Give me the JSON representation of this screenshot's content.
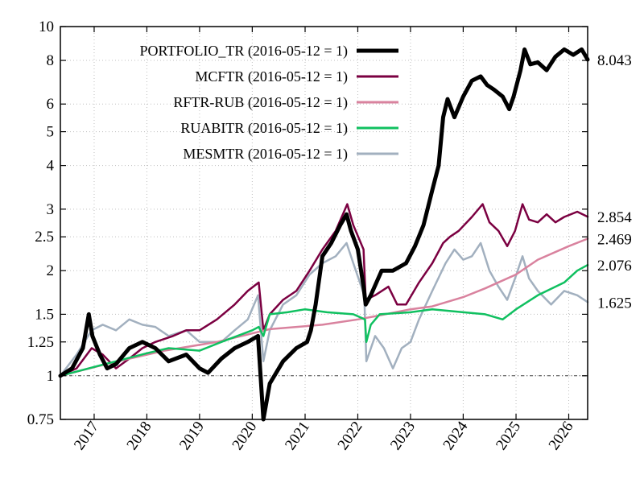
{
  "chart_data": {
    "type": "line",
    "title": "",
    "xlabel": "",
    "ylabel": "",
    "y_scale": "log",
    "ylim": [
      0.75,
      10
    ],
    "xlim": [
      "2016-05-12",
      "2026-05-12"
    ],
    "y_ticks": [
      0.75,
      1,
      1.25,
      1.5,
      2,
      2.5,
      3,
      4,
      5,
      6,
      8,
      10
    ],
    "y_tick_labels": [
      "0.75",
      "1",
      "1.25",
      "1.5",
      "2",
      "2.5",
      "3",
      "4",
      "5",
      "6",
      "8",
      "10"
    ],
    "x_ticks": [
      "2017-01-01",
      "2018-01-01",
      "2019-01-01",
      "2020-01-01",
      "2021-01-01",
      "2022-01-01",
      "2023-01-01",
      "2024-01-01",
      "2025-01-01",
      "2026-01-01"
    ],
    "x_tick_labels": [
      "2017",
      "2018",
      "2019",
      "2020",
      "2021",
      "2022",
      "2023",
      "2024",
      "2025",
      "2026"
    ],
    "grid": true,
    "reference_line": 1,
    "legend_position": "top-left",
    "series": [
      {
        "name": "PORTFOLIO_TR (2016-05-12 = 1)",
        "color": "#000000",
        "width": 5,
        "end_label": "8.043",
        "points": [
          [
            "2016-05-12",
            1.0
          ],
          [
            "2016-08-01",
            1.05
          ],
          [
            "2016-10-15",
            1.2
          ],
          [
            "2016-11-25",
            1.5
          ],
          [
            "2016-12-20",
            1.3
          ],
          [
            "2017-02-10",
            1.15
          ],
          [
            "2017-04-01",
            1.05
          ],
          [
            "2017-06-01",
            1.08
          ],
          [
            "2017-09-01",
            1.2
          ],
          [
            "2017-12-01",
            1.25
          ],
          [
            "2018-03-01",
            1.2
          ],
          [
            "2018-06-01",
            1.1
          ],
          [
            "2018-10-01",
            1.15
          ],
          [
            "2019-01-01",
            1.05
          ],
          [
            "2019-03-01",
            1.02
          ],
          [
            "2019-06-01",
            1.12
          ],
          [
            "2019-09-01",
            1.2
          ],
          [
            "2019-12-01",
            1.25
          ],
          [
            "2020-02-10",
            1.3
          ],
          [
            "2020-03-18",
            0.75
          ],
          [
            "2020-05-01",
            0.95
          ],
          [
            "2020-08-01",
            1.1
          ],
          [
            "2020-11-01",
            1.2
          ],
          [
            "2021-01-15",
            1.25
          ],
          [
            "2021-02-10",
            1.35
          ],
          [
            "2021-03-15",
            1.6
          ],
          [
            "2021-05-01",
            2.2
          ],
          [
            "2021-07-01",
            2.4
          ],
          [
            "2021-09-01",
            2.7
          ],
          [
            "2021-10-15",
            2.9
          ],
          [
            "2021-11-15",
            2.6
          ],
          [
            "2022-01-01",
            2.3
          ],
          [
            "2022-02-10",
            1.8
          ],
          [
            "2022-02-25",
            1.6
          ],
          [
            "2022-04-01",
            1.7
          ],
          [
            "2022-06-15",
            2.0
          ],
          [
            "2022-09-01",
            2.0
          ],
          [
            "2022-12-01",
            2.1
          ],
          [
            "2023-02-01",
            2.35
          ],
          [
            "2023-04-01",
            2.7
          ],
          [
            "2023-06-01",
            3.4
          ],
          [
            "2023-07-15",
            4.0
          ],
          [
            "2023-08-15",
            5.5
          ],
          [
            "2023-09-15",
            6.2
          ],
          [
            "2023-11-01",
            5.5
          ],
          [
            "2024-01-01",
            6.3
          ],
          [
            "2024-03-01",
            7.0
          ],
          [
            "2024-05-01",
            7.2
          ],
          [
            "2024-06-15",
            6.8
          ],
          [
            "2024-08-01",
            6.6
          ],
          [
            "2024-10-01",
            6.3
          ],
          [
            "2024-11-15",
            5.8
          ],
          [
            "2024-12-15",
            6.3
          ],
          [
            "2025-02-01",
            7.5
          ],
          [
            "2025-03-01",
            8.6
          ],
          [
            "2025-04-10",
            7.8
          ],
          [
            "2025-06-01",
            7.9
          ],
          [
            "2025-08-01",
            7.5
          ],
          [
            "2025-10-01",
            8.2
          ],
          [
            "2025-12-01",
            8.6
          ],
          [
            "2026-02-01",
            8.3
          ],
          [
            "2026-04-01",
            8.6
          ],
          [
            "2026-05-12",
            8.043
          ]
        ]
      },
      {
        "name": "MCFTR (2016-05-12 = 1)",
        "color": "#7b0041",
        "width": 2.5,
        "end_label": "2.854",
        "points": [
          [
            "2016-05-12",
            1.0
          ],
          [
            "2016-09-01",
            1.05
          ],
          [
            "2016-12-15",
            1.2
          ],
          [
            "2017-03-01",
            1.15
          ],
          [
            "2017-06-01",
            1.05
          ],
          [
            "2017-09-01",
            1.12
          ],
          [
            "2017-12-01",
            1.2
          ],
          [
            "2018-03-01",
            1.25
          ],
          [
            "2018-07-01",
            1.3
          ],
          [
            "2018-10-01",
            1.35
          ],
          [
            "2019-01-01",
            1.35
          ],
          [
            "2019-05-01",
            1.45
          ],
          [
            "2019-09-01",
            1.6
          ],
          [
            "2019-12-01",
            1.75
          ],
          [
            "2020-02-15",
            1.85
          ],
          [
            "2020-03-18",
            1.35
          ],
          [
            "2020-05-01",
            1.5
          ],
          [
            "2020-08-01",
            1.65
          ],
          [
            "2020-11-01",
            1.75
          ],
          [
            "2021-02-01",
            2.0
          ],
          [
            "2021-05-01",
            2.3
          ],
          [
            "2021-08-01",
            2.6
          ],
          [
            "2021-10-20",
            3.1
          ],
          [
            "2021-12-01",
            2.7
          ],
          [
            "2022-02-10",
            2.3
          ],
          [
            "2022-02-25",
            1.65
          ],
          [
            "2022-05-01",
            1.7
          ],
          [
            "2022-08-01",
            1.8
          ],
          [
            "2022-10-01",
            1.6
          ],
          [
            "2022-12-01",
            1.6
          ],
          [
            "2023-03-01",
            1.85
          ],
          [
            "2023-06-01",
            2.1
          ],
          [
            "2023-08-15",
            2.4
          ],
          [
            "2023-10-01",
            2.5
          ],
          [
            "2023-12-01",
            2.6
          ],
          [
            "2024-03-01",
            2.85
          ],
          [
            "2024-05-15",
            3.1
          ],
          [
            "2024-07-01",
            2.75
          ],
          [
            "2024-09-01",
            2.6
          ],
          [
            "2024-11-01",
            2.35
          ],
          [
            "2024-12-25",
            2.6
          ],
          [
            "2025-02-15",
            3.1
          ],
          [
            "2025-04-01",
            2.8
          ],
          [
            "2025-06-01",
            2.75
          ],
          [
            "2025-08-01",
            2.9
          ],
          [
            "2025-10-01",
            2.75
          ],
          [
            "2025-12-01",
            2.85
          ],
          [
            "2026-03-01",
            2.95
          ],
          [
            "2026-05-12",
            2.854
          ]
        ]
      },
      {
        "name": "RFTR-RUB (2016-05-12 = 1)",
        "color": "#d9829e",
        "width": 2.5,
        "end_label": "2.469",
        "points": [
          [
            "2016-05-12",
            1.0
          ],
          [
            "2017-05-01",
            1.09
          ],
          [
            "2018-05-01",
            1.18
          ],
          [
            "2019-05-01",
            1.25
          ],
          [
            "2020-05-01",
            1.36
          ],
          [
            "2021-05-01",
            1.4
          ],
          [
            "2022-01-01",
            1.45
          ],
          [
            "2022-05-01",
            1.48
          ],
          [
            "2023-01-01",
            1.55
          ],
          [
            "2023-06-01",
            1.58
          ],
          [
            "2024-01-01",
            1.68
          ],
          [
            "2024-06-01",
            1.78
          ],
          [
            "2025-01-01",
            1.95
          ],
          [
            "2025-06-01",
            2.15
          ],
          [
            "2026-01-01",
            2.35
          ],
          [
            "2026-05-12",
            2.469
          ]
        ]
      },
      {
        "name": "RUABITR (2016-05-12 = 1)",
        "color": "#10c060",
        "width": 2.5,
        "end_label": "2.076",
        "points": [
          [
            "2016-05-12",
            1.0
          ],
          [
            "2017-01-01",
            1.06
          ],
          [
            "2017-06-01",
            1.1
          ],
          [
            "2018-01-01",
            1.16
          ],
          [
            "2018-06-01",
            1.2
          ],
          [
            "2019-01-01",
            1.18
          ],
          [
            "2019-06-01",
            1.25
          ],
          [
            "2020-01-01",
            1.35
          ],
          [
            "2020-02-15",
            1.38
          ],
          [
            "2020-03-18",
            1.3
          ],
          [
            "2020-05-01",
            1.5
          ],
          [
            "2020-09-01",
            1.52
          ],
          [
            "2021-01-01",
            1.55
          ],
          [
            "2021-06-01",
            1.52
          ],
          [
            "2021-12-01",
            1.5
          ],
          [
            "2022-02-20",
            1.45
          ],
          [
            "2022-03-01",
            1.25
          ],
          [
            "2022-04-01",
            1.4
          ],
          [
            "2022-06-01",
            1.5
          ],
          [
            "2023-01-01",
            1.52
          ],
          [
            "2023-06-01",
            1.55
          ],
          [
            "2024-01-01",
            1.52
          ],
          [
            "2024-06-01",
            1.5
          ],
          [
            "2024-10-01",
            1.45
          ],
          [
            "2025-01-01",
            1.55
          ],
          [
            "2025-06-01",
            1.7
          ],
          [
            "2025-12-01",
            1.85
          ],
          [
            "2026-03-01",
            2.0
          ],
          [
            "2026-05-12",
            2.076
          ]
        ]
      },
      {
        "name": "MESMTR (2016-05-12 = 1)",
        "color": "#a2b0bf",
        "width": 2.5,
        "end_label": "1.625",
        "points": [
          [
            "2016-05-12",
            1.0
          ],
          [
            "2016-09-01",
            1.15
          ],
          [
            "2016-12-15",
            1.35
          ],
          [
            "2017-03-01",
            1.4
          ],
          [
            "2017-06-01",
            1.35
          ],
          [
            "2017-09-01",
            1.45
          ],
          [
            "2017-12-01",
            1.4
          ],
          [
            "2018-03-01",
            1.38
          ],
          [
            "2018-06-01",
            1.3
          ],
          [
            "2018-10-01",
            1.35
          ],
          [
            "2019-01-01",
            1.25
          ],
          [
            "2019-06-01",
            1.25
          ],
          [
            "2019-09-01",
            1.35
          ],
          [
            "2019-12-01",
            1.45
          ],
          [
            "2020-02-10",
            1.7
          ],
          [
            "2020-03-18",
            1.1
          ],
          [
            "2020-05-01",
            1.35
          ],
          [
            "2020-08-01",
            1.6
          ],
          [
            "2020-11-01",
            1.7
          ],
          [
            "2021-02-01",
            1.95
          ],
          [
            "2021-05-01",
            2.1
          ],
          [
            "2021-08-01",
            2.2
          ],
          [
            "2021-10-15",
            2.4
          ],
          [
            "2021-12-01",
            2.1
          ],
          [
            "2022-02-15",
            1.7
          ],
          [
            "2022-03-01",
            1.1
          ],
          [
            "2022-05-01",
            1.3
          ],
          [
            "2022-07-01",
            1.2
          ],
          [
            "2022-09-01",
            1.05
          ],
          [
            "2022-11-01",
            1.2
          ],
          [
            "2023-01-01",
            1.25
          ],
          [
            "2023-03-01",
            1.45
          ],
          [
            "2023-06-01",
            1.75
          ],
          [
            "2023-09-01",
            2.1
          ],
          [
            "2023-11-01",
            2.3
          ],
          [
            "2024-01-01",
            2.15
          ],
          [
            "2024-03-01",
            2.2
          ],
          [
            "2024-05-01",
            2.4
          ],
          [
            "2024-07-01",
            2.0
          ],
          [
            "2024-09-01",
            1.8
          ],
          [
            "2024-11-01",
            1.65
          ],
          [
            "2024-12-25",
            1.9
          ],
          [
            "2025-02-15",
            2.2
          ],
          [
            "2025-04-01",
            1.9
          ],
          [
            "2025-06-01",
            1.75
          ],
          [
            "2025-09-01",
            1.6
          ],
          [
            "2025-12-01",
            1.75
          ],
          [
            "2026-03-01",
            1.7
          ],
          [
            "2026-05-12",
            1.625
          ]
        ]
      }
    ]
  }
}
